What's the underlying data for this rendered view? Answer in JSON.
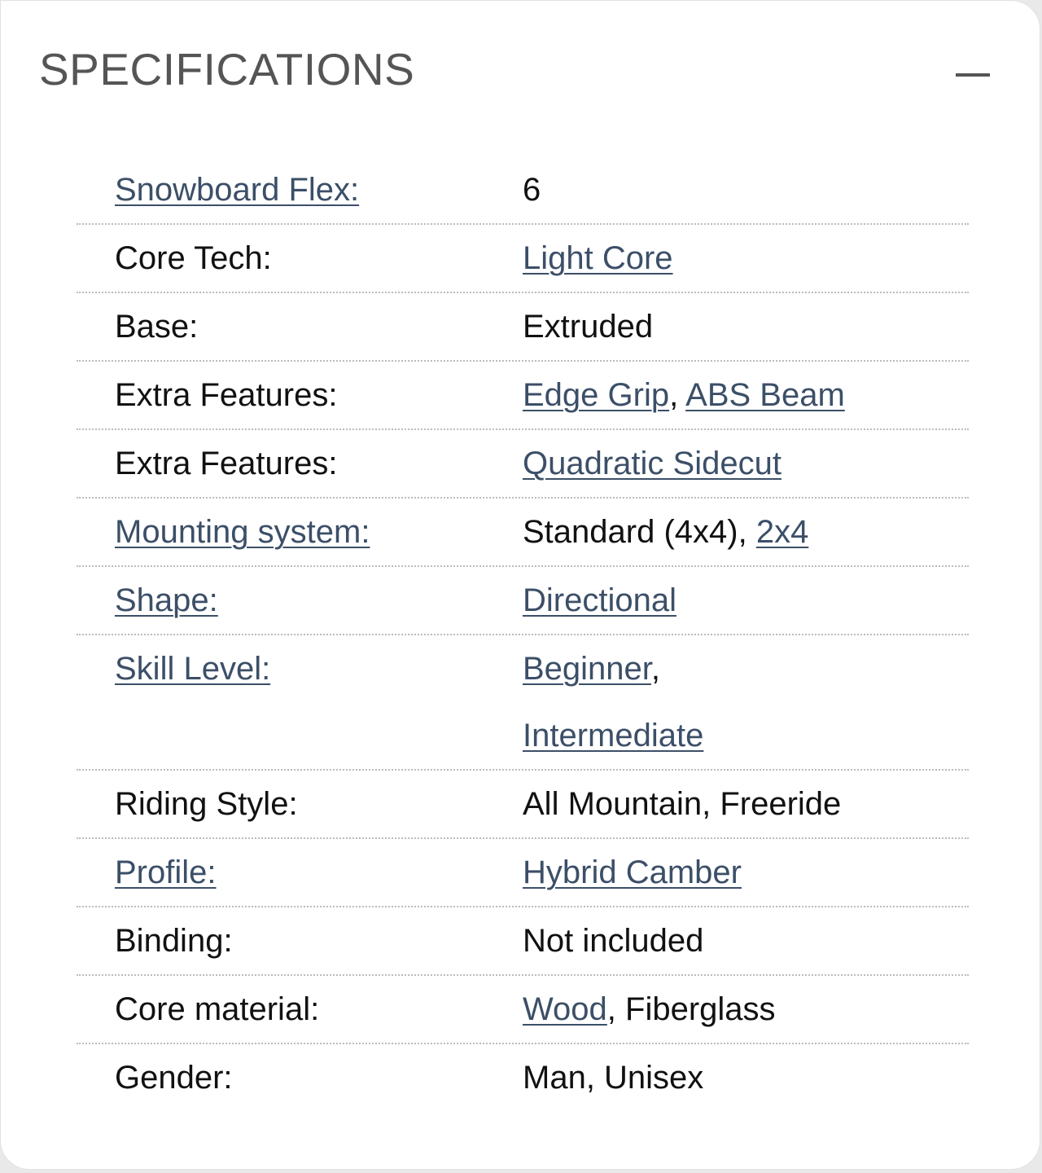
{
  "header": {
    "title": "SPECIFICATIONS",
    "collapse_icon": "minus-icon"
  },
  "colors": {
    "link": "#3c4f68",
    "text": "#111111",
    "title": "#555555"
  },
  "rows": [
    {
      "label": "Snowboard Flex:",
      "label_link": true,
      "values": [
        {
          "text": "6",
          "link": false
        }
      ]
    },
    {
      "label": "Core Tech:",
      "label_link": false,
      "values": [
        {
          "text": "Light Core",
          "link": true
        }
      ]
    },
    {
      "label": "Base:",
      "label_link": false,
      "values": [
        {
          "text": "Extruded",
          "link": false
        }
      ]
    },
    {
      "label": "Extra Features:",
      "label_link": false,
      "values": [
        {
          "text": "Edge Grip",
          "link": true
        },
        {
          "text": ", ",
          "link": false
        },
        {
          "text": "ABS Beam",
          "link": true
        }
      ]
    },
    {
      "label": "Extra Features:",
      "label_link": false,
      "values": [
        {
          "text": "Quadratic Sidecut",
          "link": true
        }
      ]
    },
    {
      "label": "Mounting system:",
      "label_link": true,
      "values": [
        {
          "text": "Standard (4x4), ",
          "link": false
        },
        {
          "text": "2x4",
          "link": true
        }
      ]
    },
    {
      "label": "Shape:",
      "label_link": true,
      "values": [
        {
          "text": "Directional",
          "link": true
        }
      ]
    },
    {
      "label": "Skill Level:",
      "label_link": true,
      "values": [
        {
          "text": "Beginner",
          "link": true
        },
        {
          "text": ",",
          "link": false
        },
        {
          "text": "Intermediate",
          "link": true
        }
      ]
    },
    {
      "label": "Riding Style:",
      "label_link": false,
      "values": [
        {
          "text": "All Mountain, Freeride",
          "link": false
        }
      ]
    },
    {
      "label": "Profile:",
      "label_link": true,
      "values": [
        {
          "text": "Hybrid Camber",
          "link": true
        }
      ]
    },
    {
      "label": "Binding:",
      "label_link": false,
      "values": [
        {
          "text": "Not included",
          "link": false
        }
      ]
    },
    {
      "label": "Core material:",
      "label_link": false,
      "values": [
        {
          "text": "Wood",
          "link": true
        },
        {
          "text": ", Fiberglass",
          "link": false
        }
      ]
    },
    {
      "label": "Gender:",
      "label_link": false,
      "values": [
        {
          "text": "Man, Unisex",
          "link": false
        }
      ]
    }
  ]
}
